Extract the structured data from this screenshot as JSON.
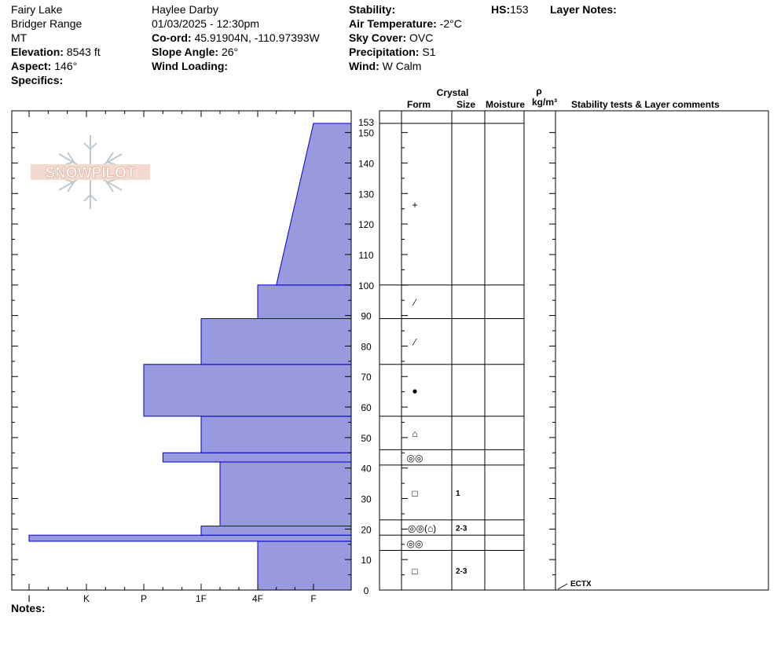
{
  "header": {
    "location": "Fairy Lake",
    "range": "Bridger Range",
    "state": "MT",
    "elevation_label": "Elevation:",
    "elevation": "8543 ft",
    "aspect_label": "Aspect:",
    "aspect": "146°",
    "specifics_label": "Specifics:",
    "observer": "Haylee Darby",
    "datetime": "01/03/2025 - 12:30pm",
    "coord_label": "Co-ord:",
    "coord": "45.91904N, -110.97393W",
    "slope_label": "Slope Angle:",
    "slope": "26°",
    "wind_loading_label": "Wind Loading:",
    "stability_label": "Stability:",
    "air_temp_label": "Air Temperature:",
    "air_temp": "-2°C",
    "sky_label": "Sky Cover:",
    "sky": "OVC",
    "precip_label": "Precipitation:",
    "precip": "S1",
    "wind_label": "Wind:",
    "wind": "W Calm",
    "hs_label": "HS:",
    "hs": "153",
    "layer_notes_label": "Layer Notes:"
  },
  "columns": {
    "crystal": "Crystal",
    "form": "Form",
    "size": "Size",
    "moisture": "Moisture",
    "rho": "ρ",
    "density_unit": "kg/m³",
    "stability": "Stability tests & Layer comments"
  },
  "notes_label": "Notes:",
  "logo_text": "SNOWPILOT",
  "colors": {
    "hardness_fill": "#9999dd",
    "hardness_stroke": "#0000cc",
    "grid": "#000000"
  },
  "chart_data": {
    "type": "bar",
    "orientation": "horizontal",
    "x_categories": [
      "I",
      "K",
      "P",
      "1F",
      "4F",
      "F"
    ],
    "y_ticks": [
      0,
      10,
      20,
      30,
      40,
      50,
      60,
      70,
      80,
      90,
      100,
      110,
      120,
      130,
      140,
      150,
      153
    ],
    "ylim": [
      0,
      153
    ],
    "hs": 153,
    "layers": [
      {
        "bottom": 0,
        "top": 16,
        "hardness": "4F",
        "bottom_hardness": "4F"
      },
      {
        "bottom": 16,
        "top": 18,
        "hardness": "I",
        "bottom_hardness": "I"
      },
      {
        "bottom": 18,
        "top": 21,
        "hardness": "1F",
        "bottom_hardness": "1F"
      },
      {
        "bottom": 21,
        "top": 42,
        "hardness": "1F+",
        "bottom_hardness": "1F+"
      },
      {
        "bottom": 42,
        "top": 45,
        "hardness": "P+",
        "bottom_hardness": "P+"
      },
      {
        "bottom": 45,
        "top": 57,
        "hardness": "1F",
        "bottom_hardness": "1F"
      },
      {
        "bottom": 57,
        "top": 74,
        "hardness": "P",
        "bottom_hardness": "P"
      },
      {
        "bottom": 74,
        "top": 89,
        "hardness": "1F",
        "bottom_hardness": "1F"
      },
      {
        "bottom": 89,
        "top": 100,
        "hardness": "4F",
        "bottom_hardness": "4F"
      },
      {
        "bottom": 100,
        "top": 153,
        "hardness": "F",
        "bottom_hardness": "4F+"
      }
    ],
    "layer_table": [
      {
        "top": 153,
        "bottom": 100,
        "form": "+",
        "size": ""
      },
      {
        "top": 100,
        "bottom": 89,
        "form": "⁄",
        "size": ""
      },
      {
        "top": 89,
        "bottom": 74,
        "form": "⁄",
        "size": ""
      },
      {
        "top": 74,
        "bottom": 57,
        "form": "●",
        "size": ""
      },
      {
        "top": 57,
        "bottom": 46,
        "form": "⌂",
        "size": ""
      },
      {
        "top": 46,
        "bottom": 41,
        "form": "◎◎",
        "size": ""
      },
      {
        "top": 41,
        "bottom": 23,
        "form": "□",
        "size": "1"
      },
      {
        "top": 23,
        "bottom": 18,
        "form": "◎◎(⌂)",
        "size": "2-3"
      },
      {
        "top": 18,
        "bottom": 13,
        "form": "◎◎",
        "size": ""
      },
      {
        "top": 13,
        "bottom": 0,
        "form": "□",
        "size": "2-3"
      }
    ],
    "stability_tests": [
      {
        "depth": 0,
        "label": "ECTX"
      }
    ]
  }
}
